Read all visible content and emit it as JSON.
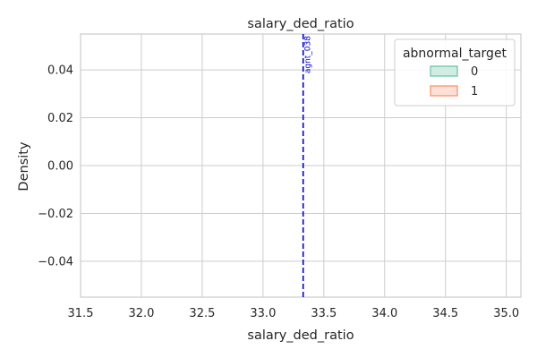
{
  "chart_data": {
    "type": "kde",
    "title": "salary_ded_ratio",
    "xlabel": "salary_ded_ratio",
    "ylabel": "Density",
    "xlim": [
      31.5,
      35.12
    ],
    "ylim": [
      -0.055,
      0.055
    ],
    "xticks": [
      31.5,
      32.0,
      32.5,
      33.0,
      33.5,
      34.0,
      34.5,
      35.0
    ],
    "xtick_labels": [
      "31.5",
      "32.0",
      "32.5",
      "33.0",
      "33.5",
      "34.0",
      "34.5",
      "35.0"
    ],
    "yticks": [
      0.04,
      0.02,
      0.0,
      -0.02,
      -0.04
    ],
    "ytick_labels": [
      "0.04",
      "0.02",
      "0.00",
      "−0.02",
      "−0.04"
    ],
    "grid": true,
    "legend": {
      "title": "abnormal_target",
      "placement": "top-right",
      "entries": [
        {
          "label": "0",
          "fill": "#d1ede3",
          "stroke": "#66c2a5"
        },
        {
          "label": "1",
          "fill": "#fde0d6",
          "stroke": "#fc8d62"
        }
      ]
    },
    "series": [
      {
        "name": "0",
        "values": []
      },
      {
        "name": "1",
        "values": []
      }
    ],
    "reference_line": {
      "x": 33.33,
      "label": "agnt_038",
      "color": "#0000cc",
      "style": "dashed"
    }
  }
}
